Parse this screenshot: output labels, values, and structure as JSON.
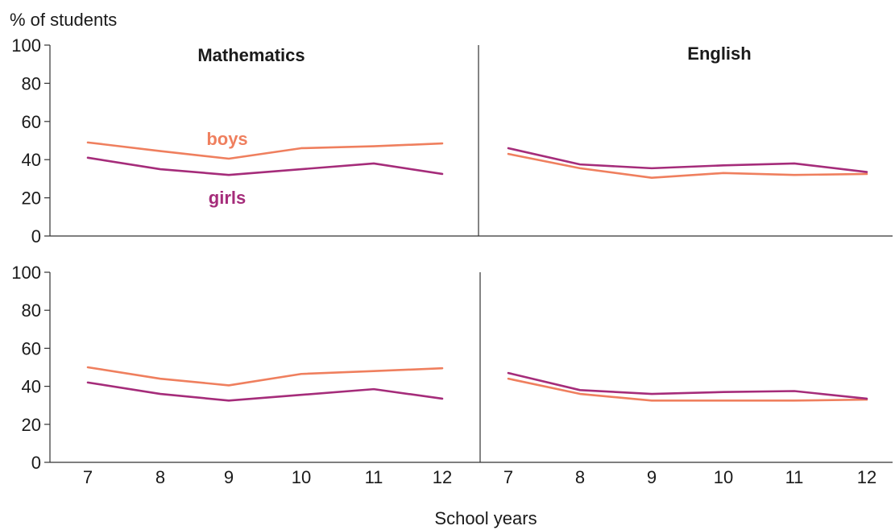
{
  "chart_data": [
    {
      "type": "line",
      "panel": "top-left",
      "title": "Mathematics",
      "ylabel": "% of students",
      "ylim": [
        0,
        100
      ],
      "yticks": [
        0,
        20,
        40,
        60,
        80,
        100
      ],
      "categories": [
        7,
        8,
        9,
        10,
        11,
        12
      ],
      "series": [
        {
          "name": "boys",
          "color": "#ef7f5e",
          "values": [
            49,
            44.5,
            40.5,
            46,
            47,
            48.5
          ]
        },
        {
          "name": "girls",
          "color": "#a52c7a",
          "values": [
            41,
            35,
            32,
            35,
            38,
            32.5
          ]
        }
      ]
    },
    {
      "type": "line",
      "panel": "top-right",
      "title": "English",
      "ylim": [
        0,
        100
      ],
      "categories": [
        7,
        8,
        9,
        10,
        11,
        12
      ],
      "series": [
        {
          "color": "#ef7f5e",
          "values": [
            43,
            35.5,
            30.5,
            33,
            32,
            32.5
          ]
        },
        {
          "color": "#a52c7a",
          "values": [
            46,
            37.5,
            35.5,
            37,
            38,
            33.5
          ]
        }
      ]
    },
    {
      "type": "line",
      "panel": "bottom-left",
      "ylim": [
        0,
        100
      ],
      "yticks": [
        0,
        20,
        40,
        60,
        80,
        100
      ],
      "xlabel": "School years",
      "categories": [
        7,
        8,
        9,
        10,
        11,
        12
      ],
      "series": [
        {
          "color": "#ef7f5e",
          "values": [
            50,
            44,
            40.5,
            46.5,
            48,
            49.5
          ]
        },
        {
          "color": "#a52c7a",
          "values": [
            42,
            36,
            32.5,
            35.5,
            38.5,
            33.5
          ]
        }
      ]
    },
    {
      "type": "line",
      "panel": "bottom-right",
      "ylim": [
        0,
        100
      ],
      "xlabel": "School years",
      "categories": [
        7,
        8,
        9,
        10,
        11,
        12
      ],
      "series": [
        {
          "color": "#ef7f5e",
          "values": [
            44,
            36,
            32.5,
            32.5,
            32.5,
            33
          ]
        },
        {
          "color": "#a52c7a",
          "values": [
            47,
            38,
            36,
            37,
            37.5,
            33.5
          ]
        }
      ]
    }
  ],
  "labels": {
    "ylabel": "% of students",
    "xlabel": "School years",
    "title_math": "Mathematics",
    "title_english": "English",
    "series_boys": "boys",
    "series_girls": "girls"
  }
}
